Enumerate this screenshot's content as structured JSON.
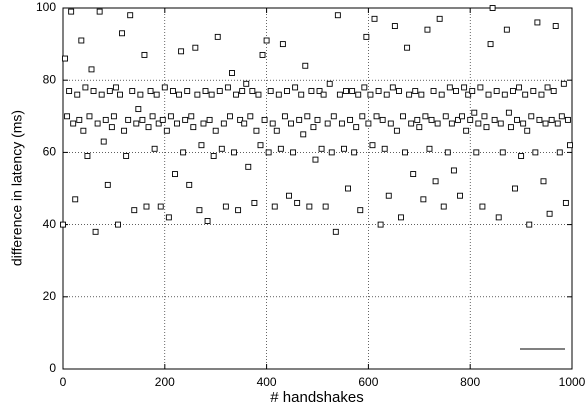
{
  "chart_data": {
    "type": "scatter",
    "xlabel": "# handshakes",
    "ylabel": "difference in latency (ms)",
    "xlim": [
      0,
      1000
    ],
    "ylim": [
      0,
      100
    ],
    "xticks": [
      0,
      200,
      400,
      600,
      800,
      1000
    ],
    "yticks": [
      0,
      20,
      40,
      60,
      80,
      100
    ],
    "grid": true,
    "color": "#000000",
    "x": [
      0,
      4,
      8,
      12,
      16,
      20,
      24,
      28,
      32,
      36,
      40,
      44,
      48,
      52,
      56,
      60,
      64,
      68,
      72,
      76,
      80,
      84,
      88,
      92,
      96,
      100,
      104,
      108,
      112,
      116,
      120,
      124,
      128,
      132,
      136,
      140,
      144,
      148,
      152,
      156,
      160,
      164,
      168,
      172,
      176,
      180,
      184,
      188,
      192,
      196,
      200,
      204,
      208,
      212,
      216,
      220,
      224,
      228,
      232,
      236,
      240,
      244,
      248,
      252,
      256,
      260,
      264,
      268,
      272,
      276,
      280,
      284,
      288,
      292,
      296,
      300,
      304,
      308,
      312,
      316,
      320,
      324,
      328,
      332,
      336,
      340,
      344,
      348,
      352,
      356,
      360,
      364,
      368,
      372,
      376,
      380,
      384,
      388,
      392,
      396,
      400,
      404,
      408,
      412,
      416,
      420,
      424,
      428,
      432,
      436,
      440,
      444,
      448,
      452,
      456,
      460,
      464,
      468,
      472,
      476,
      480,
      484,
      488,
      492,
      496,
      500,
      504,
      508,
      512,
      516,
      520,
      524,
      528,
      532,
      536,
      540,
      544,
      548,
      552,
      556,
      560,
      564,
      568,
      572,
      576,
      580,
      584,
      588,
      592,
      596,
      600,
      604,
      608,
      612,
      616,
      620,
      624,
      628,
      632,
      636,
      640,
      644,
      648,
      652,
      656,
      660,
      664,
      668,
      672,
      676,
      680,
      684,
      688,
      692,
      696,
      700,
      704,
      708,
      712,
      716,
      720,
      724,
      728,
      732,
      736,
      740,
      744,
      748,
      752,
      756,
      760,
      764,
      768,
      772,
      776,
      780,
      784,
      788,
      792,
      796,
      800,
      804,
      808,
      812,
      816,
      820,
      824,
      828,
      832,
      836,
      840,
      844,
      848,
      852,
      856,
      860,
      864,
      868,
      872,
      876,
      880,
      884,
      888,
      892,
      896,
      900,
      904,
      908,
      912,
      916,
      920,
      924,
      928,
      932,
      936,
      940,
      944,
      948,
      952,
      956,
      960,
      964,
      968,
      972,
      976,
      980,
      984,
      988,
      992,
      996
    ],
    "values": [
      40,
      86,
      70,
      77,
      99,
      68,
      47,
      76,
      69,
      91,
      66,
      78,
      59,
      70,
      83,
      77,
      38,
      68,
      99,
      76,
      63,
      69,
      51,
      77,
      67,
      70,
      78,
      40,
      76,
      93,
      66,
      59,
      69,
      98,
      77,
      44,
      68,
      72,
      76,
      69,
      87,
      45,
      67,
      77,
      70,
      61,
      76,
      68,
      45,
      69,
      78,
      66,
      42,
      70,
      77,
      54,
      68,
      76,
      88,
      60,
      69,
      77,
      51,
      70,
      67,
      89,
      76,
      44,
      62,
      68,
      77,
      41,
      69,
      76,
      59,
      66,
      92,
      77,
      61,
      68,
      45,
      78,
      70,
      82,
      60,
      76,
      44,
      69,
      77,
      68,
      79,
      56,
      70,
      77,
      46,
      66,
      76,
      62,
      87,
      69,
      91,
      60,
      77,
      68,
      45,
      66,
      76,
      61,
      90,
      70,
      77,
      48,
      68,
      60,
      78,
      46,
      69,
      76,
      65,
      84,
      70,
      45,
      77,
      67,
      58,
      69,
      77,
      61,
      76,
      45,
      68,
      79,
      60,
      70,
      38,
      98,
      76,
      68,
      61,
      77,
      50,
      69,
      77,
      60,
      67,
      76,
      44,
      70,
      78,
      92,
      68,
      76,
      62,
      97,
      70,
      77,
      40,
      69,
      61,
      76,
      48,
      68,
      78,
      95,
      66,
      77,
      42,
      70,
      60,
      89,
      76,
      68,
      54,
      77,
      69,
      67,
      76,
      47,
      70,
      94,
      61,
      69,
      77,
      52,
      68,
      97,
      76,
      45,
      70,
      60,
      78,
      68,
      55,
      77,
      69,
      48,
      70,
      78,
      66,
      76,
      69,
      77,
      71,
      60,
      68,
      78,
      45,
      70,
      67,
      76,
      90,
      100,
      69,
      77,
      42,
      68,
      60,
      76,
      94,
      71,
      67,
      77,
      50,
      69,
      78,
      59,
      68,
      76,
      66,
      40,
      70,
      77,
      60,
      96,
      69,
      76,
      52,
      68,
      78,
      43,
      69,
      77,
      95,
      68,
      60,
      70,
      79,
      46,
      69,
      62
    ]
  }
}
